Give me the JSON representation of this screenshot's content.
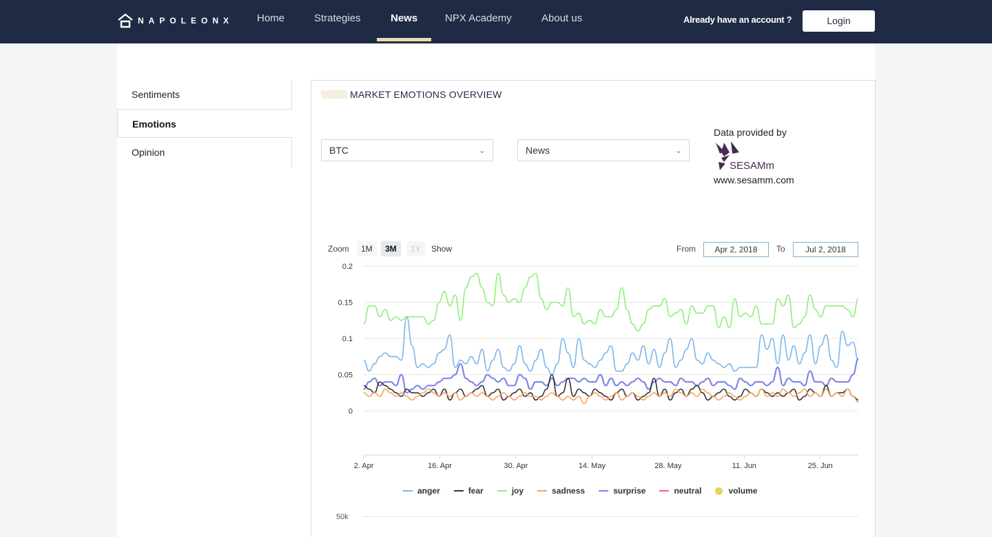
{
  "brand": {
    "name": "NAPOLEONX"
  },
  "nav": {
    "items": [
      {
        "label": "Home",
        "active": false
      },
      {
        "label": "Strategies",
        "active": false
      },
      {
        "label": "News",
        "active": true
      },
      {
        "label": "NPX Academy",
        "active": false
      },
      {
        "label": "About us",
        "active": false
      }
    ],
    "account_prompt": "Already have an account ?",
    "login_label": "Login"
  },
  "sidebar": {
    "items": [
      {
        "label": "Sentiments",
        "active": false
      },
      {
        "label": "Emotions",
        "active": true
      },
      {
        "label": "Opinion",
        "active": false
      }
    ]
  },
  "panel": {
    "title": "MARKET EMOTIONS OVERVIEW",
    "asset_select": "BTC",
    "source_select": "News",
    "provided_by": "Data provided by",
    "provider_logo_text": "SESAMm",
    "provider_url": "www.sesamm.com"
  },
  "chart_controls": {
    "zoom_label": "Zoom",
    "zoom_options": [
      {
        "label": "1M",
        "state": "normal"
      },
      {
        "label": "3M",
        "state": "selected"
      },
      {
        "label": "1Y",
        "state": "disabled"
      }
    ],
    "show_label": "Show",
    "from_label": "From",
    "from_value": "Apr 2, 2018",
    "to_label": "To",
    "to_value": "Jul 2, 2018"
  },
  "colors": {
    "navbar": "#1f2a44",
    "anger": "#7cb5ec",
    "fear": "#333333",
    "joy": "#90ed7d",
    "sadness": "#f7a35c",
    "surprise": "#8085e9",
    "neutral": "#f15c80",
    "volume": "#e4d354"
  },
  "chart_data": {
    "type": "line",
    "title": "",
    "xlabel": "",
    "ylabel": "",
    "ylim": [
      0,
      0.2
    ],
    "yticks": [
      "0",
      "0.05",
      "0.1",
      "0.15",
      "0.2"
    ],
    "xticks": [
      "2. Apr",
      "16. Apr",
      "30. Apr",
      "14. May",
      "28. May",
      "11. Jun",
      "25. Jun"
    ],
    "x_start": "2018-04-02",
    "x_end": "2018-07-02",
    "legend": [
      "anger",
      "fear",
      "joy",
      "sadness",
      "surprise",
      "neutral",
      "volume"
    ],
    "series": [
      {
        "name": "joy",
        "values": [
          0.12,
          0.145,
          0.145,
          0.13,
          0.14,
          0.125,
          0.13,
          0.125,
          0.13,
          0.13,
          0.13,
          0.13,
          0.12,
          0.125,
          0.15,
          0.165,
          0.145,
          0.16,
          0.125,
          0.17,
          0.185,
          0.19,
          0.17,
          0.15,
          0.145,
          0.19,
          0.16,
          0.15,
          0.155,
          0.15,
          0.17,
          0.185,
          0.19,
          0.155,
          0.14,
          0.15,
          0.15,
          0.145,
          0.17,
          0.13,
          0.135,
          0.12,
          0.125,
          0.12,
          0.14,
          0.13,
          0.13,
          0.14,
          0.17,
          0.14,
          0.12,
          0.11,
          0.12,
          0.14,
          0.145,
          0.145,
          0.155,
          0.13,
          0.135,
          0.14,
          0.12,
          0.145,
          0.135,
          0.135,
          0.145,
          0.145,
          0.115,
          0.13,
          0.115,
          0.155,
          0.13,
          0.135,
          0.13,
          0.145,
          0.12,
          0.12,
          0.12,
          0.155,
          0.145,
          0.16,
          0.115,
          0.12,
          0.13,
          0.16,
          0.14,
          0.13,
          0.145,
          0.145,
          0.145,
          0.145,
          0.14,
          0.13,
          0.155
        ]
      },
      {
        "name": "anger",
        "values": [
          0.07,
          0.055,
          0.065,
          0.075,
          0.08,
          0.075,
          0.075,
          0.07,
          0.13,
          0.09,
          0.06,
          0.065,
          0.06,
          0.065,
          0.08,
          0.085,
          0.105,
          0.06,
          0.07,
          0.065,
          0.075,
          0.065,
          0.085,
          0.055,
          0.07,
          0.085,
          0.06,
          0.055,
          0.065,
          0.09,
          0.065,
          0.055,
          0.07,
          0.085,
          0.06,
          0.05,
          0.065,
          0.1,
          0.08,
          0.06,
          0.1,
          0.07,
          0.065,
          0.06,
          0.07,
          0.08,
          0.09,
          0.055,
          0.055,
          0.065,
          0.08,
          0.07,
          0.09,
          0.065,
          0.085,
          0.06,
          0.08,
          0.1,
          0.06,
          0.07,
          0.085,
          0.1,
          0.07,
          0.065,
          0.08,
          0.07,
          0.065,
          0.06,
          0.065,
          0.055,
          0.06,
          0.06,
          0.06,
          0.06,
          0.105,
          0.085,
          0.1,
          0.065,
          0.105,
          0.07,
          0.09,
          0.065,
          0.08,
          0.105,
          0.065,
          0.09,
          0.105,
          0.07,
          0.06,
          0.11,
          0.09,
          0.095,
          0.07
        ]
      },
      {
        "name": "surprise",
        "values": [
          0.03,
          0.04,
          0.045,
          0.035,
          0.04,
          0.04,
          0.035,
          0.05,
          0.025,
          0.03,
          0.035,
          0.03,
          0.035,
          0.035,
          0.04,
          0.045,
          0.045,
          0.05,
          0.065,
          0.045,
          0.04,
          0.035,
          0.04,
          0.05,
          0.045,
          0.04,
          0.045,
          0.035,
          0.035,
          0.05,
          0.045,
          0.03,
          0.04,
          0.04,
          0.035,
          0.045,
          0.035,
          0.04,
          0.045,
          0.045,
          0.04,
          0.045,
          0.04,
          0.04,
          0.05,
          0.035,
          0.045,
          0.035,
          0.04,
          0.035,
          0.04,
          0.045,
          0.04,
          0.03,
          0.04,
          0.045,
          0.04,
          0.04,
          0.035,
          0.045,
          0.04,
          0.04,
          0.035,
          0.04,
          0.045,
          0.035,
          0.04,
          0.04,
          0.035,
          0.03,
          0.045,
          0.04,
          0.035,
          0.04,
          0.04,
          0.035,
          0.04,
          0.06,
          0.035,
          0.045,
          0.04,
          0.04,
          0.035,
          0.055,
          0.04,
          0.04,
          0.035,
          0.045,
          0.04,
          0.04,
          0.04,
          0.05,
          0.072
        ]
      },
      {
        "name": "fear",
        "values": [
          0.035,
          0.03,
          0.025,
          0.04,
          0.035,
          0.03,
          0.025,
          0.02,
          0.03,
          0.025,
          0.025,
          0.02,
          0.025,
          0.03,
          0.02,
          0.03,
          0.015,
          0.025,
          0.03,
          0.02,
          0.025,
          0.03,
          0.035,
          0.02,
          0.025,
          0.03,
          0.015,
          0.02,
          0.025,
          0.03,
          0.02,
          0.025,
          0.015,
          0.02,
          0.03,
          0.05,
          0.02,
          0.025,
          0.045,
          0.02,
          0.03,
          0.025,
          0.02,
          0.03,
          0.025,
          0.02,
          0.015,
          0.025,
          0.03,
          0.02,
          0.025,
          0.015,
          0.02,
          0.025,
          0.045,
          0.02,
          0.03,
          0.015,
          0.025,
          0.03,
          0.02,
          0.03,
          0.035,
          0.025,
          0.015,
          0.02,
          0.025,
          0.03,
          0.02,
          0.015,
          0.02,
          0.03,
          0.025,
          0.02,
          0.03,
          0.025,
          0.02,
          0.025,
          0.02,
          0.025,
          0.03,
          0.015,
          0.02,
          0.03,
          0.025,
          0.02,
          0.035,
          0.02,
          0.025,
          0.025,
          0.03,
          0.02,
          0.015
        ]
      },
      {
        "name": "sadness",
        "values": [
          0.025,
          0.02,
          0.025,
          0.02,
          0.03,
          0.025,
          0.02,
          0.025,
          0.02,
          0.015,
          0.02,
          0.025,
          0.03,
          0.025,
          0.02,
          0.025,
          0.02,
          0.025,
          0.015,
          0.02,
          0.025,
          0.02,
          0.025,
          0.02,
          0.015,
          0.02,
          0.025,
          0.02,
          0.015,
          0.02,
          0.025,
          0.02,
          0.02,
          0.015,
          0.02,
          0.025,
          0.02,
          0.015,
          0.02,
          0.015,
          0.02,
          0.01,
          0.02,
          0.025,
          0.02,
          0.015,
          0.02,
          0.025,
          0.015,
          0.02,
          0.025,
          0.02,
          0.015,
          0.02,
          0.025,
          0.02,
          0.025,
          0.02,
          0.03,
          0.025,
          0.02,
          0.025,
          0.02,
          0.03,
          0.025,
          0.02,
          0.015,
          0.02,
          0.025,
          0.02,
          0.015,
          0.02,
          0.025,
          0.02,
          0.03,
          0.02,
          0.025,
          0.02,
          0.03,
          0.025,
          0.02,
          0.025,
          0.03,
          0.02,
          0.025,
          0.02,
          0.03,
          0.02,
          0.025,
          0.02,
          0.03,
          0.02,
          0.012
        ]
      },
      {
        "name": "neutral",
        "values": []
      }
    ],
    "volume_axis": {
      "tick": "50k"
    },
    "grid": true,
    "legend_position": "bottom"
  }
}
